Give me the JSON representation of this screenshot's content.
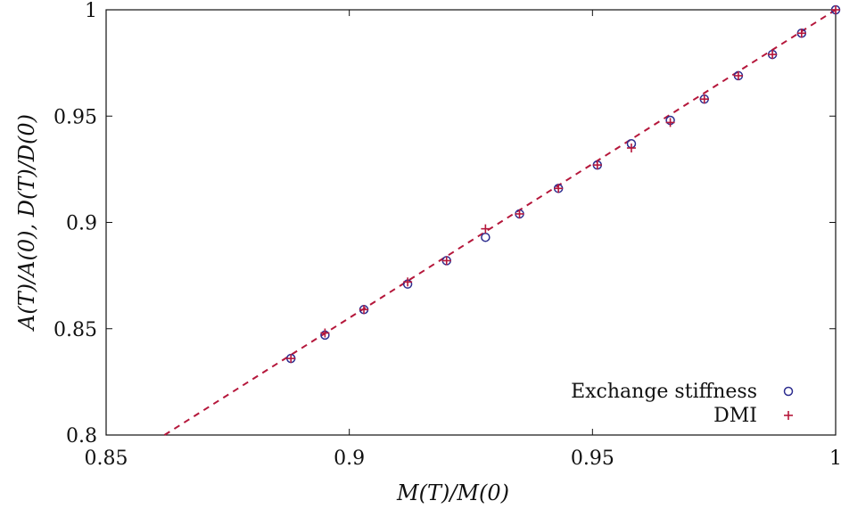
{
  "chart_data": {
    "type": "scatter",
    "xlabel": "M(T)/M(0)",
    "ylabel": "A(T)/A(0), D(T)/D(0)",
    "xlim": [
      0.85,
      1.0
    ],
    "ylim": [
      0.8,
      1.0
    ],
    "xticks": [
      0.85,
      0.9,
      0.95,
      1.0
    ],
    "xtick_labels": [
      "0.85",
      "0.9",
      "0.95",
      "1"
    ],
    "yticks": [
      0.8,
      0.85,
      0.9,
      0.95,
      1.0
    ],
    "ytick_labels": [
      "0.8",
      "0.85",
      "0.9",
      "0.95",
      "1"
    ],
    "legend_placement": "bottom-right",
    "grid": false,
    "series": [
      {
        "name": "Exchange stiffness",
        "marker": "circle",
        "color": "#2d2d8f",
        "points": [
          [
            0.888,
            0.836
          ],
          [
            0.895,
            0.847
          ],
          [
            0.903,
            0.859
          ],
          [
            0.912,
            0.871
          ],
          [
            0.92,
            0.882
          ],
          [
            0.928,
            0.893
          ],
          [
            0.935,
            0.904
          ],
          [
            0.943,
            0.916
          ],
          [
            0.951,
            0.927
          ],
          [
            0.958,
            0.937
          ],
          [
            0.966,
            0.948
          ],
          [
            0.973,
            0.958
          ],
          [
            0.98,
            0.969
          ],
          [
            0.987,
            0.979
          ],
          [
            0.993,
            0.989
          ],
          [
            1.0,
            1.0
          ]
        ]
      },
      {
        "name": "DMI",
        "marker": "plus",
        "color": "#b5173b",
        "points": [
          [
            0.888,
            0.836
          ],
          [
            0.895,
            0.848
          ],
          [
            0.903,
            0.859
          ],
          [
            0.912,
            0.872
          ],
          [
            0.92,
            0.882
          ],
          [
            0.928,
            0.897
          ],
          [
            0.935,
            0.904
          ],
          [
            0.943,
            0.916
          ],
          [
            0.951,
            0.927
          ],
          [
            0.958,
            0.935
          ],
          [
            0.966,
            0.947
          ],
          [
            0.973,
            0.958
          ],
          [
            0.98,
            0.969
          ],
          [
            0.987,
            0.979
          ],
          [
            0.993,
            0.989
          ],
          [
            1.0,
            1.0
          ]
        ]
      },
      {
        "name": "",
        "marker": "dashed-line",
        "color": "#b5173b",
        "points": [
          [
            0.862,
            0.8
          ],
          [
            1.0,
            1.0
          ]
        ]
      }
    ]
  }
}
